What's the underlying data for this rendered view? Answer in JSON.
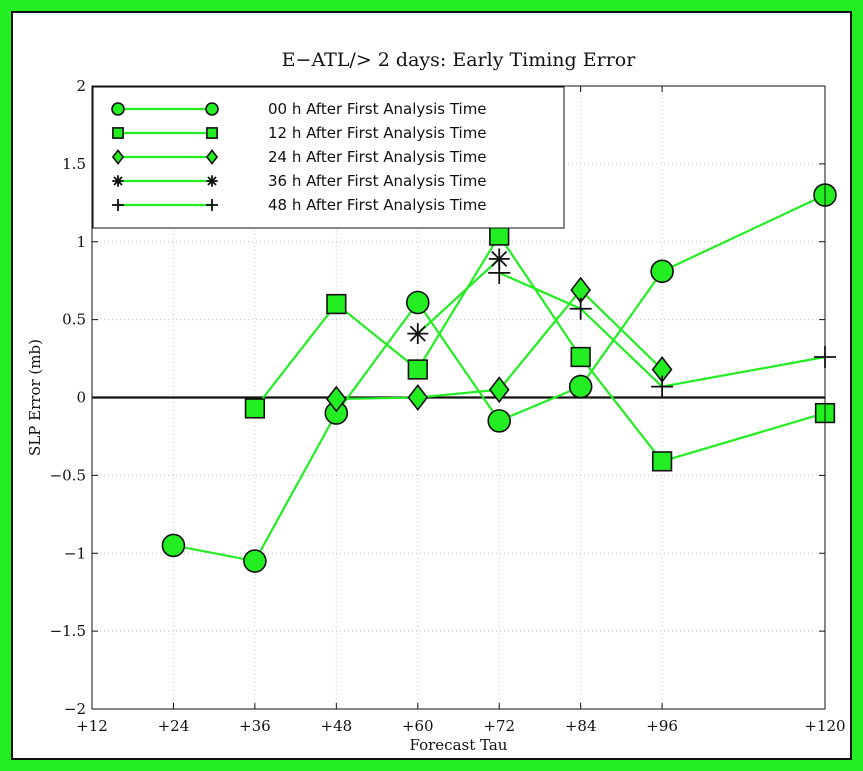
{
  "chart_data": {
    "type": "line",
    "title": "E−ATL/> 2 days: Early Timing Error",
    "xlabel": "Forecast Tau",
    "ylabel": "SLP Error (mb)",
    "x": [
      12,
      24,
      36,
      48,
      60,
      72,
      84,
      96,
      120
    ],
    "x_tick_labels": [
      "+12",
      "+24",
      "+36",
      "+48",
      "+60",
      "+72",
      "+84",
      "+96",
      "+120"
    ],
    "xlim": [
      12,
      120
    ],
    "ylim": [
      -2,
      2
    ],
    "y_ticks": [
      -2,
      -1.5,
      -1,
      -0.5,
      0,
      0.5,
      1,
      1.5,
      2
    ],
    "y_tick_labels": [
      "−2",
      "−1.5",
      "−1",
      "−0.5",
      "0",
      "0.5",
      "1",
      "1.5",
      "2"
    ],
    "grid": true,
    "zero_line": true,
    "legend_position": "top-left",
    "line_color": "#22ee22",
    "marker_fill": "#22ee22",
    "series": [
      {
        "name": "00 h After First Analysis Time",
        "marker": "circle",
        "points": [
          [
            24,
            -0.95
          ],
          [
            36,
            -1.05
          ],
          [
            48,
            -0.1
          ],
          [
            60,
            0.61
          ],
          [
            72,
            -0.15
          ],
          [
            84,
            0.07
          ],
          [
            96,
            0.81
          ],
          [
            120,
            1.3
          ]
        ]
      },
      {
        "name": "12 h After First Analysis Time",
        "marker": "square",
        "points": [
          [
            36,
            -0.07
          ],
          [
            48,
            0.6
          ],
          [
            60,
            0.18
          ],
          [
            72,
            1.04
          ],
          [
            84,
            0.26
          ],
          [
            96,
            -0.41
          ],
          [
            120,
            -0.1
          ]
        ]
      },
      {
        "name": "24 h After First Analysis Time",
        "marker": "diamond",
        "points": [
          [
            48,
            -0.01
          ],
          [
            60,
            0.0
          ],
          [
            72,
            0.05
          ],
          [
            84,
            0.69
          ],
          [
            96,
            0.18
          ]
        ]
      },
      {
        "name": "36 h After First Analysis Time",
        "marker": "asterisk",
        "points": [
          [
            60,
            0.41
          ],
          [
            72,
            0.89
          ]
        ]
      },
      {
        "name": "48 h After First Analysis Time",
        "marker": "plus",
        "points": [
          [
            72,
            0.8
          ],
          [
            84,
            0.57
          ],
          [
            96,
            0.07
          ],
          [
            120,
            0.26
          ]
        ]
      }
    ]
  }
}
